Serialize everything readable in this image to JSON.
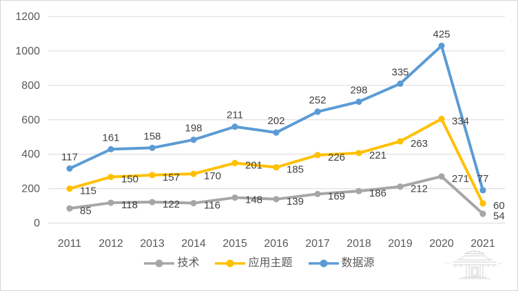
{
  "chart_data": {
    "type": "line",
    "stacked": true,
    "categories": [
      "2011",
      "2012",
      "2013",
      "2014",
      "2015",
      "2016",
      "2017",
      "2018",
      "2019",
      "2020",
      "2021"
    ],
    "series": [
      {
        "name": "技术",
        "color": "#A6A6A6",
        "values": [
          85,
          118,
          122,
          116,
          148,
          139,
          169,
          186,
          212,
          271,
          54
        ],
        "label_position": "right"
      },
      {
        "name": "应用主题",
        "color": "#FFC000",
        "values": [
          115,
          150,
          157,
          170,
          201,
          185,
          226,
          221,
          263,
          334,
          60
        ],
        "label_position": "right"
      },
      {
        "name": "数据源",
        "color": "#5B9BD5",
        "values": [
          117,
          161,
          158,
          198,
          211,
          202,
          252,
          298,
          335,
          425,
          77
        ],
        "label_position": "above"
      }
    ],
    "y_ticks": [
      0,
      200,
      400,
      600,
      800,
      1000,
      1200
    ],
    "ylim": [
      0,
      1200
    ],
    "grid": true,
    "gridline_color": "#D9D9D9",
    "axis_label_color": "#595959",
    "data_label_color": "#404040",
    "legend_position": "bottom"
  },
  "watermark": {
    "icon": "pavilion-icon",
    "color": "#c9c9c9"
  }
}
